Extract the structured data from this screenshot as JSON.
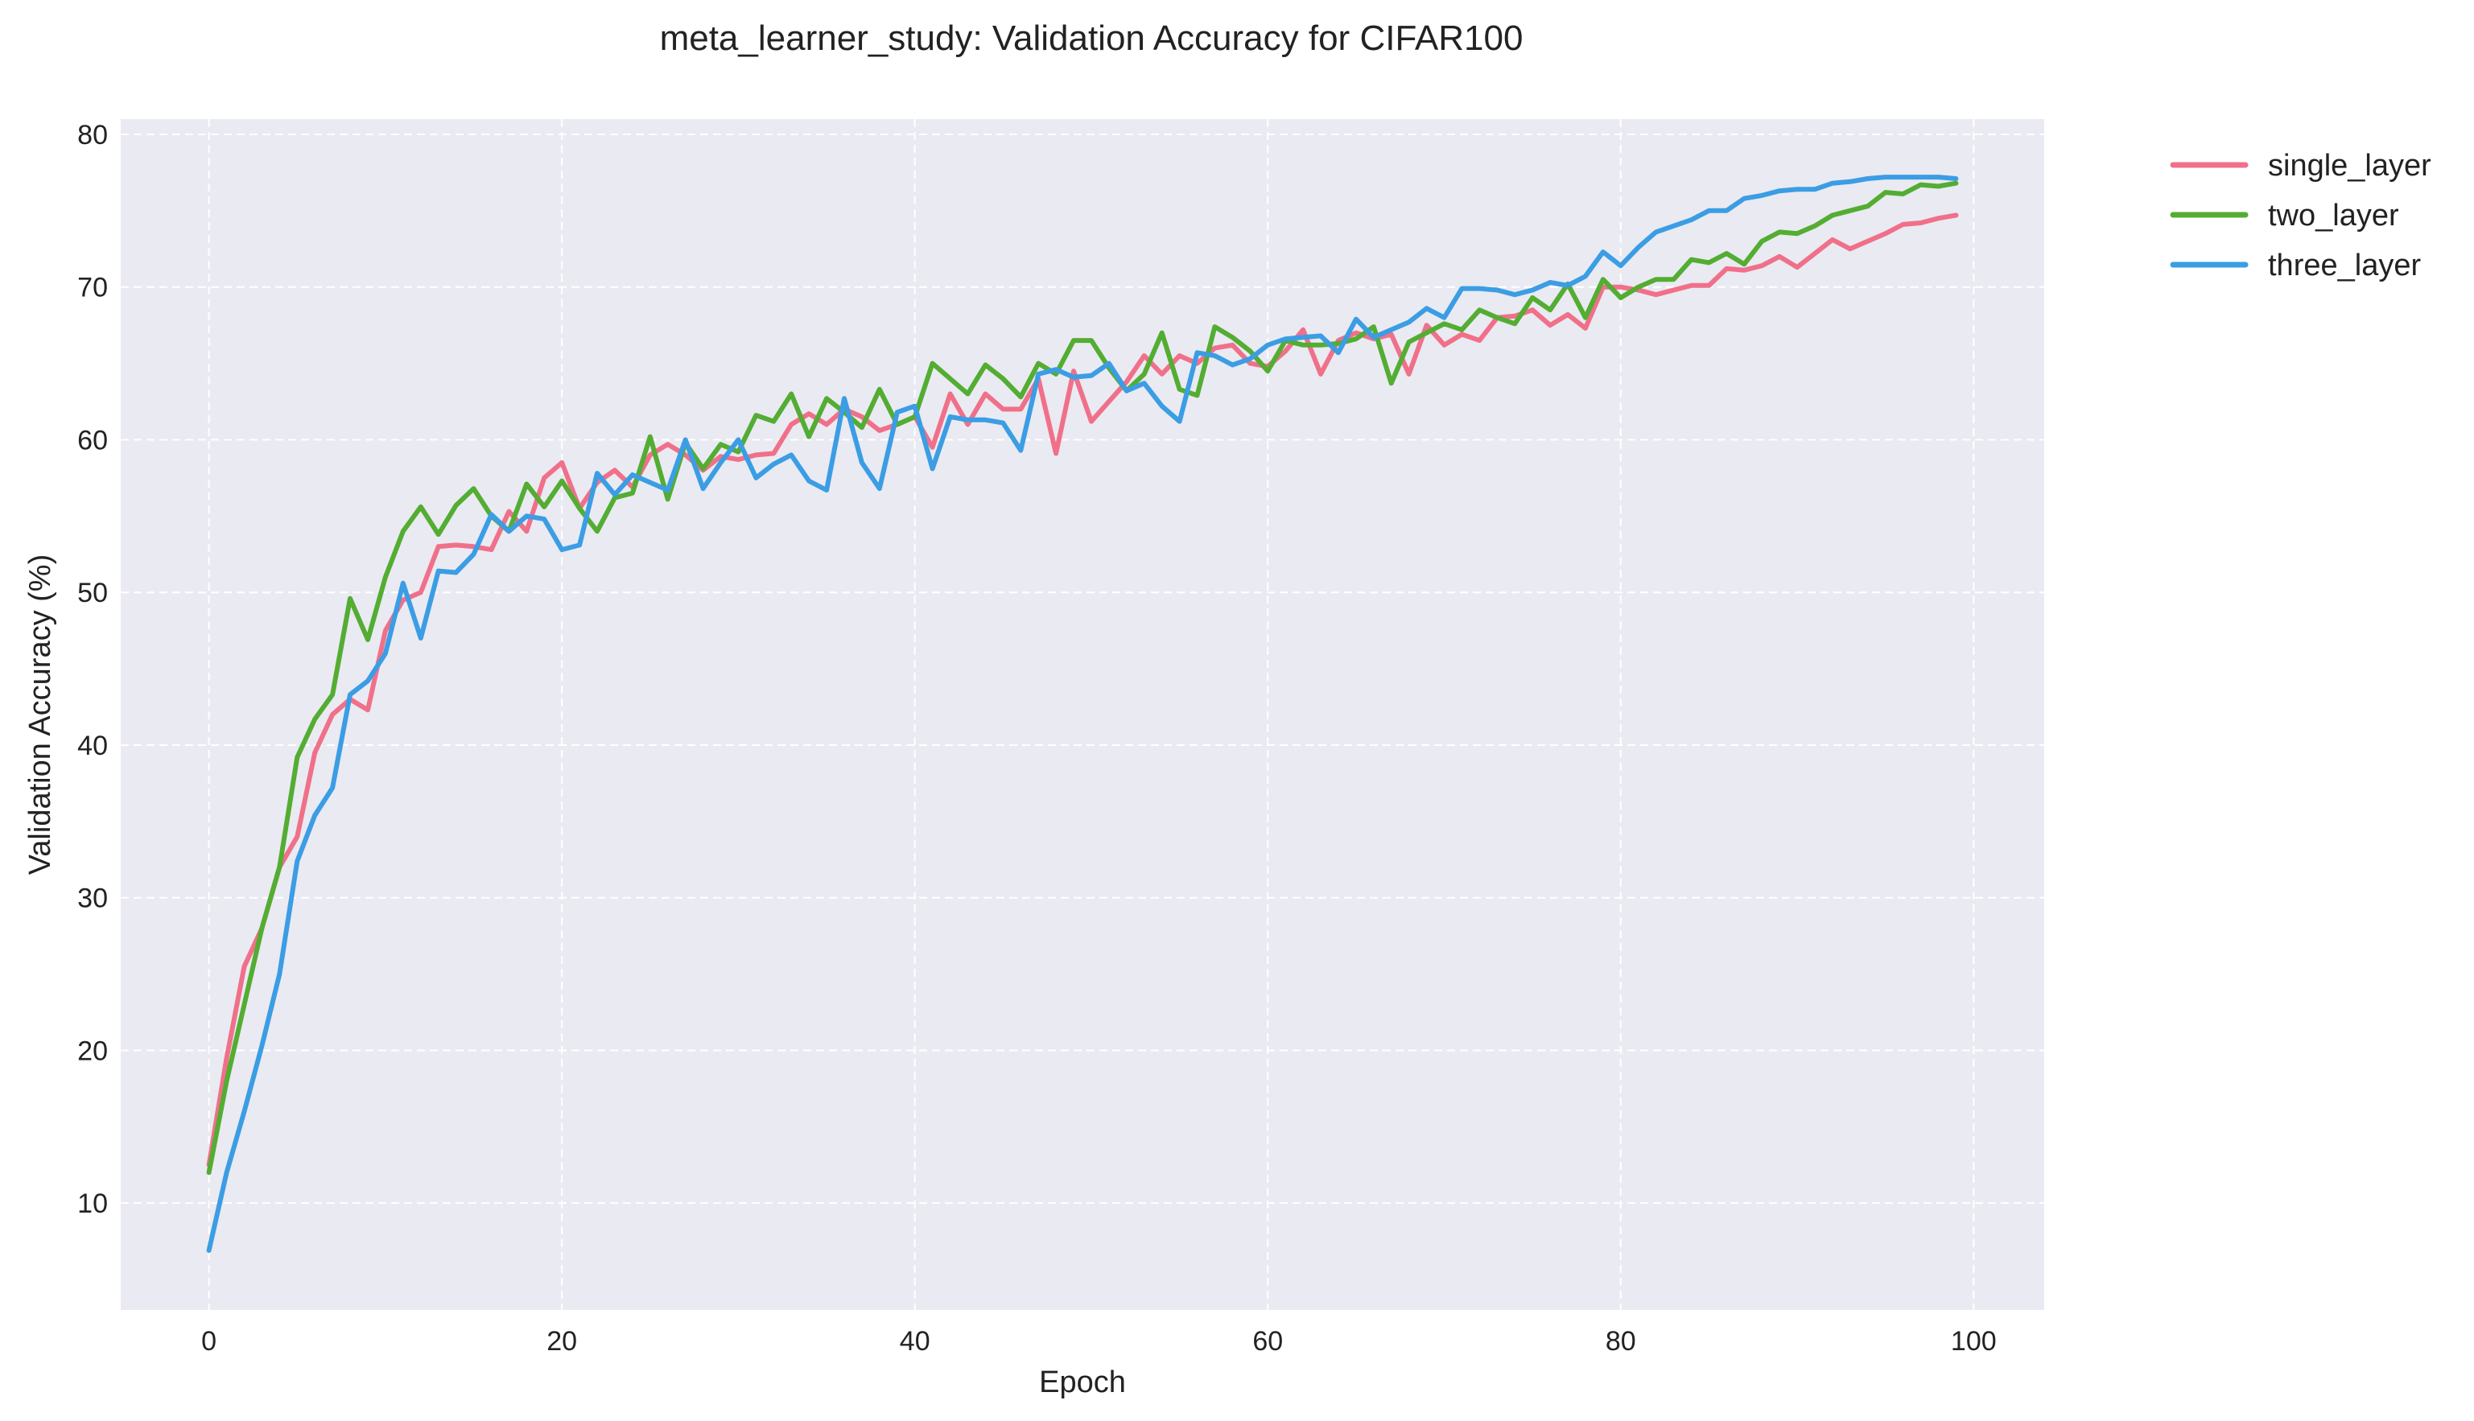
{
  "chart_data": {
    "type": "line",
    "title": "meta_learner_study: Validation Accuracy for CIFAR100",
    "xlabel": "Epoch",
    "ylabel": "Validation Accuracy (%)",
    "xlim": [
      -5,
      104
    ],
    "ylim": [
      3,
      81
    ],
    "xticks": [
      0,
      20,
      40,
      60,
      80,
      100
    ],
    "yticks": [
      10,
      20,
      30,
      40,
      50,
      60,
      70,
      80
    ],
    "grid": true,
    "legend_position": "outside-top-right",
    "background_color": "#eaeaf2",
    "series": [
      {
        "name": "single_layer",
        "color": "#f0708a",
        "x": [
          0,
          1,
          2,
          3,
          4,
          5,
          6,
          7,
          8,
          9,
          10,
          11,
          12,
          13,
          14,
          15,
          16,
          17,
          18,
          19,
          20,
          21,
          22,
          23,
          24,
          25,
          26,
          27,
          28,
          29,
          30,
          31,
          32,
          33,
          34,
          35,
          36,
          37,
          38,
          39,
          40,
          41,
          42,
          43,
          44,
          45,
          46,
          47,
          48,
          49,
          50,
          51,
          52,
          53,
          54,
          55,
          56,
          57,
          58,
          59,
          60,
          61,
          62,
          63,
          64,
          65,
          66,
          67,
          68,
          69,
          70,
          71,
          72,
          73,
          74,
          75,
          76,
          77,
          78,
          79,
          80,
          81,
          82,
          83,
          84,
          85,
          86,
          87,
          88,
          89,
          90,
          91,
          92,
          93,
          94,
          95,
          96,
          97,
          98,
          99
        ],
        "values": [
          12.5,
          19.5,
          25.5,
          28.0,
          32.0,
          34.0,
          39.5,
          42.0,
          43.0,
          42.3,
          47.5,
          49.5,
          50.0,
          53.0,
          53.1,
          53.0,
          52.8,
          55.3,
          54.0,
          57.5,
          58.5,
          55.5,
          57.2,
          58.0,
          56.9,
          59.0,
          59.7,
          59.0,
          58.0,
          58.9,
          58.7,
          59.0,
          59.1,
          61.0,
          61.7,
          61.0,
          62.0,
          61.5,
          60.6,
          61.0,
          61.5,
          59.5,
          63.0,
          61.0,
          63.0,
          62.0,
          62.0,
          64.0,
          59.1,
          64.5,
          61.2,
          62.5,
          63.8,
          65.5,
          64.3,
          65.5,
          65.0,
          66.0,
          66.2,
          65.0,
          64.8,
          65.8,
          67.2,
          64.3,
          66.5,
          67.0,
          66.6,
          66.9,
          64.3,
          67.5,
          66.2,
          66.9,
          66.5,
          68.0,
          68.1,
          68.5,
          67.5,
          68.2,
          67.3,
          70.0,
          70.0,
          69.8,
          69.5,
          69.8,
          70.1,
          70.1,
          71.2,
          71.1,
          71.4,
          72.0,
          71.3,
          72.2,
          73.1,
          72.5,
          73.0,
          73.5,
          74.1,
          74.2,
          74.5,
          74.7
        ]
      },
      {
        "name": "two_layer",
        "color": "#53ad32",
        "x": [
          0,
          1,
          2,
          3,
          4,
          5,
          6,
          7,
          8,
          9,
          10,
          11,
          12,
          13,
          14,
          15,
          16,
          17,
          18,
          19,
          20,
          21,
          22,
          23,
          24,
          25,
          26,
          27,
          28,
          29,
          30,
          31,
          32,
          33,
          34,
          35,
          36,
          37,
          38,
          39,
          40,
          41,
          42,
          43,
          44,
          45,
          46,
          47,
          48,
          49,
          50,
          51,
          52,
          53,
          54,
          55,
          56,
          57,
          58,
          59,
          60,
          61,
          62,
          63,
          64,
          65,
          66,
          67,
          68,
          69,
          70,
          71,
          72,
          73,
          74,
          75,
          76,
          77,
          78,
          79,
          80,
          81,
          82,
          83,
          84,
          85,
          86,
          87,
          88,
          89,
          90,
          91,
          92,
          93,
          94,
          95,
          96,
          97,
          98,
          99
        ],
        "values": [
          12.0,
          18.0,
          23.0,
          28.0,
          32.0,
          39.2,
          41.7,
          43.3,
          49.6,
          46.9,
          51.0,
          54.0,
          55.6,
          53.8,
          55.7,
          56.8,
          55.0,
          54.0,
          57.1,
          55.6,
          57.3,
          55.5,
          54.0,
          56.2,
          56.5,
          60.2,
          56.1,
          59.8,
          58.1,
          59.7,
          59.2,
          61.6,
          61.2,
          63.0,
          60.2,
          62.7,
          61.8,
          60.8,
          63.3,
          61.0,
          61.5,
          65.0,
          64.0,
          63.0,
          64.9,
          64.0,
          62.8,
          65.0,
          64.3,
          66.5,
          66.5,
          64.7,
          63.2,
          64.3,
          67.0,
          63.3,
          62.9,
          67.4,
          66.7,
          65.8,
          64.5,
          66.5,
          66.2,
          66.2,
          66.3,
          66.6,
          67.4,
          63.7,
          66.4,
          67.0,
          67.6,
          67.2,
          68.5,
          68.0,
          67.6,
          69.3,
          68.5,
          70.2,
          68.0,
          70.5,
          69.3,
          70.0,
          70.5,
          70.5,
          71.8,
          71.6,
          72.2,
          71.5,
          73.0,
          73.6,
          73.5,
          74.0,
          74.7,
          75.0,
          75.3,
          76.2,
          76.1,
          76.7,
          76.6,
          76.8
        ]
      },
      {
        "name": "three_layer",
        "color": "#3b9de4",
        "x": [
          0,
          1,
          2,
          3,
          4,
          5,
          6,
          7,
          8,
          9,
          10,
          11,
          12,
          13,
          14,
          15,
          16,
          17,
          18,
          19,
          20,
          21,
          22,
          23,
          24,
          25,
          26,
          27,
          28,
          29,
          30,
          31,
          32,
          33,
          34,
          35,
          36,
          37,
          38,
          39,
          40,
          41,
          42,
          43,
          44,
          45,
          46,
          47,
          48,
          49,
          50,
          51,
          52,
          53,
          54,
          55,
          56,
          57,
          58,
          59,
          60,
          61,
          62,
          63,
          64,
          65,
          66,
          67,
          68,
          69,
          70,
          71,
          72,
          73,
          74,
          75,
          76,
          77,
          78,
          79,
          80,
          81,
          82,
          83,
          84,
          85,
          86,
          87,
          88,
          89,
          90,
          91,
          92,
          93,
          94,
          95,
          96,
          97,
          98,
          99
        ],
        "values": [
          6.9,
          12.0,
          16.0,
          20.3,
          25.0,
          32.4,
          35.4,
          37.2,
          43.3,
          44.2,
          46.0,
          50.6,
          47.0,
          51.4,
          51.3,
          52.5,
          55.1,
          54.0,
          55.0,
          54.8,
          52.8,
          53.1,
          57.8,
          56.4,
          57.7,
          57.2,
          56.7,
          60.0,
          56.8,
          58.5,
          60.0,
          57.5,
          58.4,
          59.0,
          57.3,
          56.7,
          62.7,
          58.5,
          56.8,
          61.8,
          62.2,
          58.1,
          61.5,
          61.3,
          61.3,
          61.1,
          59.3,
          64.3,
          64.6,
          64.1,
          64.2,
          65.0,
          63.2,
          63.7,
          62.2,
          61.2,
          65.7,
          65.5,
          64.9,
          65.3,
          66.2,
          66.6,
          66.7,
          66.8,
          65.7,
          67.9,
          66.7,
          67.2,
          67.7,
          68.6,
          68.0,
          69.9,
          69.9,
          69.8,
          69.5,
          69.8,
          70.3,
          70.1,
          70.7,
          72.3,
          71.4,
          72.6,
          73.6,
          74.0,
          74.4,
          75.0,
          75.0,
          75.8,
          76.0,
          76.3,
          76.4,
          76.4,
          76.8,
          76.9,
          77.1,
          77.2,
          77.2,
          77.2,
          77.2,
          77.1
        ]
      }
    ]
  }
}
